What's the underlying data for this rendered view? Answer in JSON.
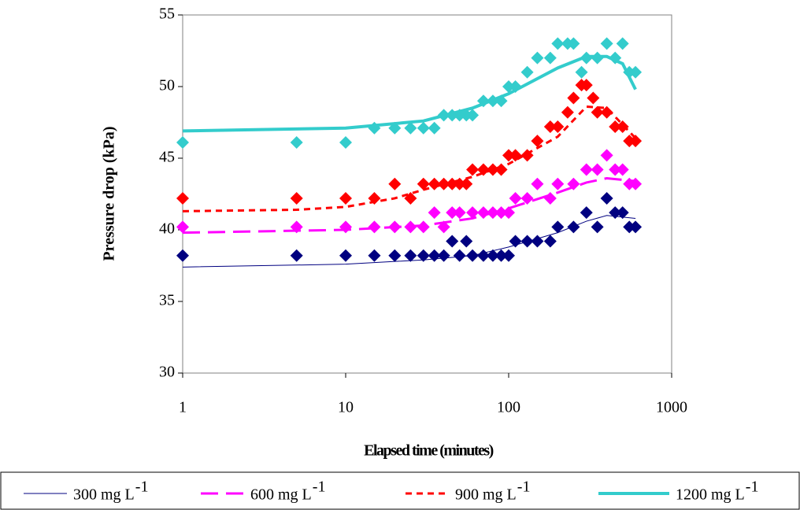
{
  "chart_data": {
    "type": "scatter",
    "x_label": "Elapsed time (minutes)",
    "y_label": "Pressure drop (kPa)",
    "xscale": "log",
    "xlim": [
      1,
      1000
    ],
    "xticks": [
      1,
      10,
      100,
      1000
    ],
    "ylim": [
      30,
      55
    ],
    "yticks": [
      30,
      35,
      40,
      45,
      50,
      55
    ],
    "legend": "bottom",
    "series": [
      {
        "name": "300 mg L",
        "sup": "-1",
        "color": "#000080",
        "dash": "solid",
        "width": 1,
        "points": {
          "x": [
            1,
            5,
            10,
            15,
            20,
            25,
            30,
            35,
            40,
            45,
            50,
            55,
            60,
            70,
            80,
            90,
            100,
            110,
            130,
            150,
            180,
            200,
            250,
            300,
            350,
            400,
            450,
            500,
            550,
            600
          ],
          "y": [
            38.2,
            38.2,
            38.2,
            38.2,
            38.2,
            38.2,
            38.2,
            38.2,
            38.2,
            39.2,
            38.2,
            39.2,
            38.2,
            38.2,
            38.2,
            38.2,
            38.2,
            39.2,
            39.2,
            39.2,
            39.2,
            40.2,
            40.2,
            41.2,
            40.2,
            42.2,
            41.2,
            41.2,
            40.2,
            40.2
          ]
        },
        "fit": {
          "x": [
            1,
            10,
            30,
            60,
            100,
            200,
            300,
            400,
            600
          ],
          "y": [
            37.4,
            37.6,
            37.9,
            38.2,
            38.8,
            39.8,
            40.6,
            41,
            40.8
          ]
        }
      },
      {
        "name": "600 mg L",
        "sup": "-1",
        "color": "#ff00ff",
        "dash": "long",
        "width": 3,
        "points": {
          "x": [
            1,
            5,
            10,
            15,
            20,
            25,
            30,
            35,
            40,
            45,
            50,
            60,
            70,
            80,
            90,
            100,
            110,
            130,
            150,
            180,
            200,
            250,
            300,
            350,
            400,
            450,
            500,
            550,
            600
          ],
          "y": [
            40.2,
            40.2,
            40.2,
            40.2,
            40.2,
            40.2,
            40.2,
            41.2,
            40.2,
            41.2,
            41.2,
            41.2,
            41.2,
            41.2,
            41.2,
            41.2,
            42.2,
            42.2,
            43.2,
            42.2,
            43.2,
            43.2,
            44.2,
            44.2,
            45.2,
            44.2,
            44.2,
            43.2,
            43.2
          ]
        },
        "fit": {
          "x": [
            1,
            10,
            30,
            60,
            100,
            200,
            300,
            400,
            600
          ],
          "y": [
            39.8,
            40,
            40.3,
            40.8,
            41.5,
            42.6,
            43.3,
            43.6,
            43.4
          ]
        }
      },
      {
        "name": "900 mg L",
        "sup": "-1",
        "color": "#ff0000",
        "dash": "short",
        "width": 3,
        "points": {
          "x": [
            1,
            5,
            10,
            15,
            20,
            25,
            30,
            35,
            40,
            45,
            50,
            55,
            60,
            70,
            80,
            90,
            100,
            110,
            130,
            150,
            180,
            200,
            230,
            250,
            280,
            300,
            330,
            350,
            400,
            450,
            500,
            550,
            600
          ],
          "y": [
            42.2,
            42.2,
            42.2,
            42.2,
            43.2,
            42.2,
            43.2,
            43.2,
            43.2,
            43.2,
            43.2,
            43.2,
            44.2,
            44.2,
            44.2,
            44.2,
            45.2,
            45.2,
            45.2,
            46.2,
            47.2,
            47.2,
            48.2,
            49.2,
            50.1,
            50.1,
            49.2,
            48.2,
            48.2,
            47.2,
            47.2,
            46.2,
            46.2
          ]
        },
        "fit": {
          "x": [
            1,
            5,
            10,
            20,
            30,
            60,
            100,
            200,
            300,
            400,
            600
          ],
          "y": [
            41.3,
            41.4,
            41.6,
            42.2,
            42.8,
            43.7,
            44.6,
            46.5,
            48.6,
            48.5,
            46.4
          ]
        }
      },
      {
        "name": "1200 mg L",
        "sup": "-1",
        "color": "#33cccc",
        "dash": "solid",
        "width": 4,
        "points": {
          "x": [
            1,
            5,
            10,
            15,
            20,
            25,
            30,
            35,
            40,
            45,
            50,
            55,
            60,
            70,
            80,
            90,
            100,
            110,
            130,
            150,
            180,
            200,
            230,
            250,
            280,
            300,
            350,
            400,
            450,
            500,
            550,
            600
          ],
          "y": [
            46.1,
            46.1,
            46.1,
            47.1,
            47.1,
            47.1,
            47.1,
            47.1,
            48,
            48,
            48,
            48,
            48,
            49,
            49,
            49,
            50,
            50,
            51,
            52,
            52,
            53,
            53,
            53,
            51,
            52,
            52,
            53,
            52,
            53,
            51,
            51
          ]
        },
        "fit": {
          "x": [
            1,
            10,
            30,
            60,
            100,
            200,
            300,
            400,
            500,
            600
          ],
          "y": [
            46.9,
            47.1,
            47.6,
            48.5,
            49.5,
            51.3,
            52.1,
            52.1,
            51.6,
            49.8
          ]
        }
      }
    ]
  }
}
